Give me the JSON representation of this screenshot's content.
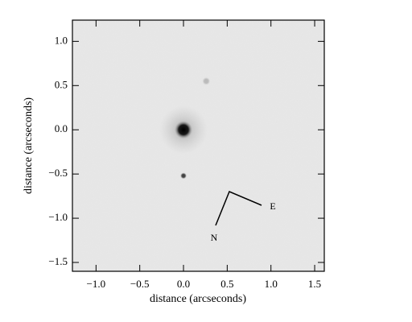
{
  "chart_data": {
    "type": "image",
    "xlabel": "distance (arcseconds)",
    "ylabel": "distance (arcseconds)",
    "xlim": [
      -1.27,
      1.61
    ],
    "ylim": [
      -1.6,
      1.24
    ],
    "xticks": [
      {
        "value": -1.0,
        "label": "−1.0"
      },
      {
        "value": -0.5,
        "label": "−0.5"
      },
      {
        "value": 0.0,
        "label": "0.0"
      },
      {
        "value": 0.5,
        "label": "0.5"
      },
      {
        "value": 1.0,
        "label": "1.0"
      },
      {
        "value": 1.5,
        "label": "1.5"
      }
    ],
    "yticks": [
      {
        "value": -1.5,
        "label": "−1.5"
      },
      {
        "value": -1.0,
        "label": "−1.0"
      },
      {
        "value": -0.5,
        "label": "−0.5"
      },
      {
        "value": 0.0,
        "label": "0.0"
      },
      {
        "value": 0.5,
        "label": "0.5"
      },
      {
        "value": 1.0,
        "label": "1.0"
      }
    ],
    "x": [
      0.0,
      0.0,
      0.26
    ],
    "y": [
      0.0,
      -0.52,
      0.55
    ],
    "annotations": [
      "N",
      "E"
    ]
  }
}
